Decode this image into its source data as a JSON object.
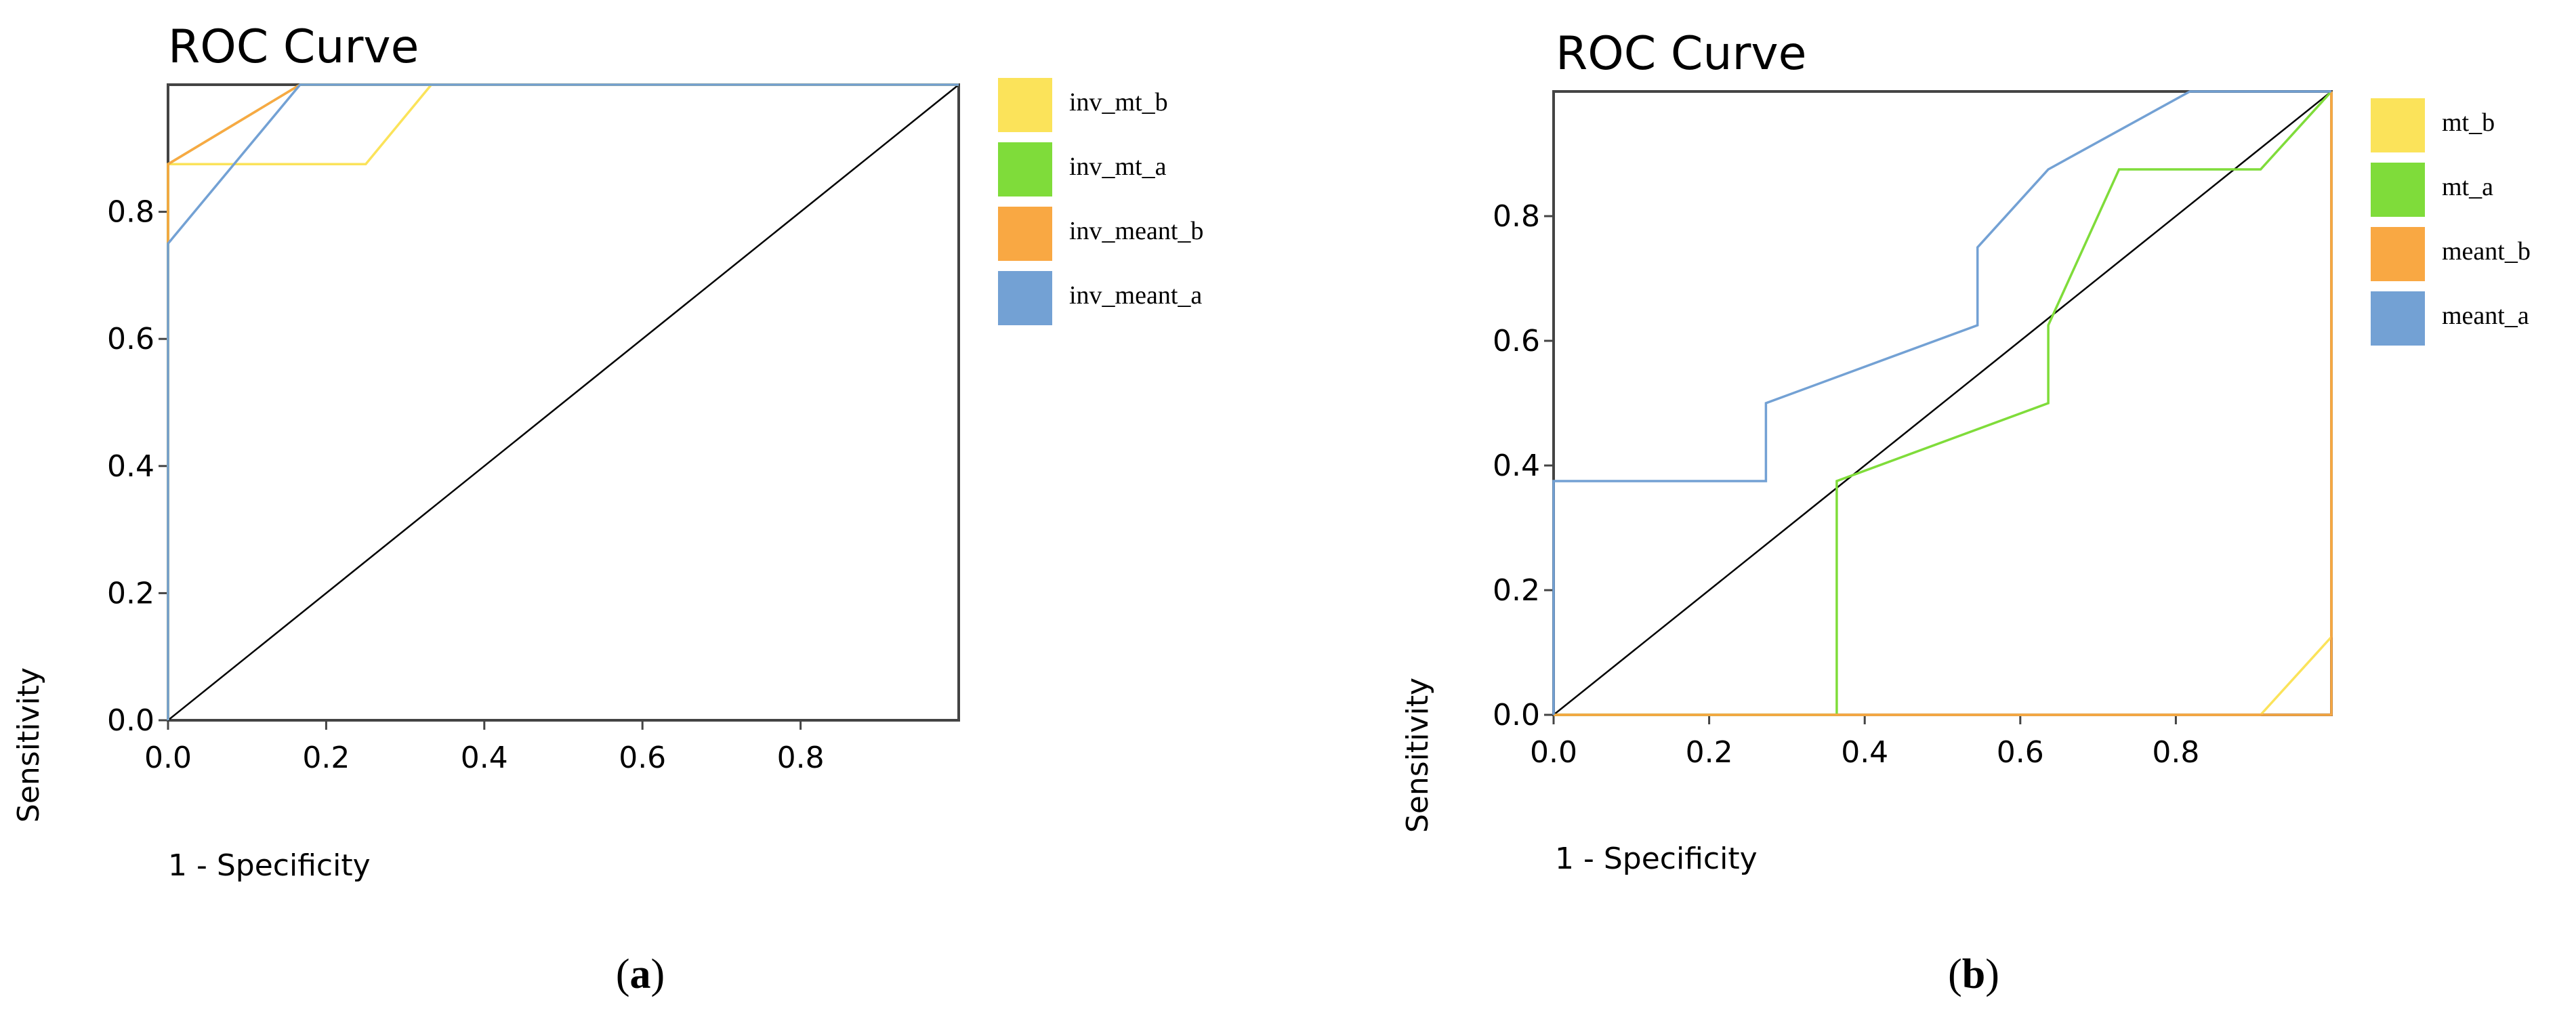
{
  "chart_data": [
    {
      "type": "line",
      "title": "ROC Curve",
      "xlabel": "1 - Specificity",
      "ylabel": "Sensitivity",
      "xlim": [
        0,
        1
      ],
      "ylim": [
        0,
        1
      ],
      "xticks": [
        "0.0",
        "0.2",
        "0.4",
        "0.6",
        "0.8"
      ],
      "yticks": [
        "0.0",
        "0.2",
        "0.4",
        "0.6",
        "0.8"
      ],
      "caption_letter": "a",
      "legend_position": "right",
      "series": [
        {
          "name": "inv_mt_b",
          "color": "#fbe35a",
          "x": [
            0,
            0,
            0.25,
            0.333,
            1
          ],
          "y": [
            0,
            0.875,
            0.875,
            1,
            1
          ]
        },
        {
          "name": "inv_mt_a",
          "color": "#7fdc3a",
          "x": [
            0,
            0,
            0.167,
            1
          ],
          "y": [
            0,
            0.875,
            1,
            1
          ]
        },
        {
          "name": "inv_meant_b",
          "color": "#f9a843",
          "x": [
            0,
            0,
            0.167,
            1
          ],
          "y": [
            0,
            0.875,
            1,
            1
          ]
        },
        {
          "name": "inv_meant_a",
          "color": "#73a1d4",
          "x": [
            0,
            0,
            0.167,
            1
          ],
          "y": [
            0,
            0.75,
            1,
            1
          ]
        }
      ]
    },
    {
      "type": "line",
      "title": "ROC Curve",
      "xlabel": "1 - Specificity",
      "ylabel": "Sensitivity",
      "xlim": [
        0,
        1
      ],
      "ylim": [
        0,
        1
      ],
      "xticks": [
        "0.0",
        "0.2",
        "0.4",
        "0.6",
        "0.8"
      ],
      "yticks": [
        "0.0",
        "0.2",
        "0.4",
        "0.6",
        "0.8"
      ],
      "caption_letter": "b",
      "legend_position": "right",
      "series": [
        {
          "name": "mt_b",
          "color": "#fbe35a",
          "x": [
            0,
            0.909,
            1,
            1
          ],
          "y": [
            0,
            0,
            0.125,
            1
          ]
        },
        {
          "name": "mt_a",
          "color": "#7fdc3a",
          "x": [
            0,
            0.364,
            0.364,
            0.636,
            0.636,
            0.727,
            0.909,
            1
          ],
          "y": [
            0,
            0,
            0.375,
            0.5,
            0.625,
            0.875,
            0.875,
            1
          ]
        },
        {
          "name": "meant_b",
          "color": "#f9a843",
          "x": [
            0,
            1,
            1
          ],
          "y": [
            0,
            0,
            1
          ]
        },
        {
          "name": "meant_a",
          "color": "#73a1d4",
          "x": [
            0,
            0,
            0.273,
            0.273,
            0.545,
            0.545,
            0.636,
            0.818,
            1
          ],
          "y": [
            0,
            0.375,
            0.375,
            0.5,
            0.625,
            0.75,
            0.875,
            1,
            1
          ]
        }
      ]
    }
  ]
}
